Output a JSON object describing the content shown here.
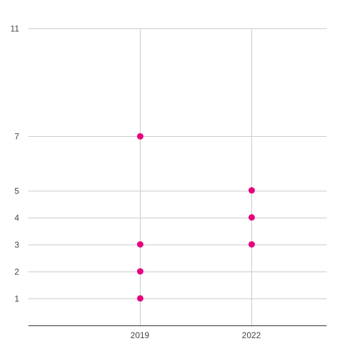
{
  "chart_data": {
    "type": "scatter",
    "title": "",
    "xlabel": "",
    "ylabel": "",
    "x_categories": [
      "2019",
      "2022"
    ],
    "y_ticks": [
      1,
      2,
      3,
      4,
      5,
      7,
      11
    ],
    "ylim": [
      0,
      11
    ],
    "grid": true,
    "legend": "none",
    "series": [
      {
        "points": [
          {
            "x": "2019",
            "y": 7
          },
          {
            "x": "2019",
            "y": 3
          },
          {
            "x": "2019",
            "y": 2
          },
          {
            "x": "2019",
            "y": 1
          },
          {
            "x": "2022",
            "y": 5
          },
          {
            "x": "2022",
            "y": 4
          },
          {
            "x": "2022",
            "y": 3
          }
        ]
      }
    ],
    "colors": {
      "marker": "#e6007e",
      "grid": "#cccccc",
      "axis": "#333333"
    }
  }
}
